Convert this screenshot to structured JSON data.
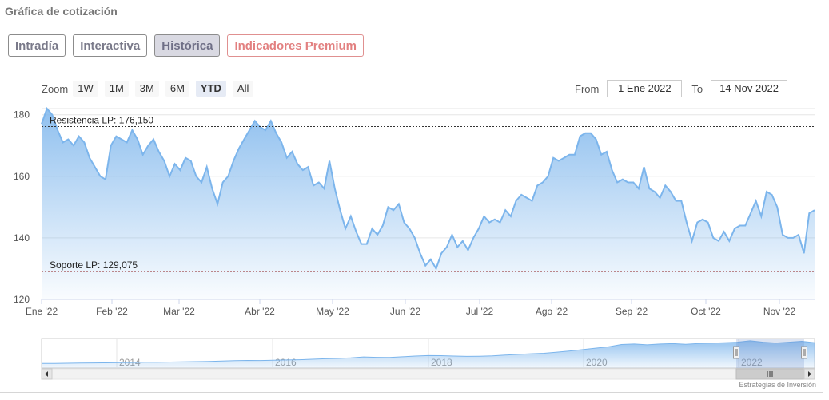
{
  "header": {
    "title": "Gráfica de cotización"
  },
  "tabs": [
    {
      "label": "Intradía",
      "active": false
    },
    {
      "label": "Interactiva",
      "active": false
    },
    {
      "label": "Histórica",
      "active": true
    },
    {
      "label": "Indicadores Premium",
      "active": false
    }
  ],
  "zoom": {
    "label": "Zoom",
    "options": [
      "1W",
      "1M",
      "3M",
      "6M",
      "YTD",
      "All"
    ],
    "selected": "YTD"
  },
  "range": {
    "from_label": "From",
    "from_value": "1 Ene 2022",
    "to_label": "To",
    "to_value": "14 Nov 2022"
  },
  "chart_data": {
    "type": "area",
    "x_tick_labels": [
      "Ene '22",
      "Feb '22",
      "Mar '22",
      "Abr '22",
      "May '22",
      "Jun '22",
      "Jul '22",
      "Ago '22",
      "Sep '22",
      "Oct '22",
      "Nov '22"
    ],
    "y_tick_labels": [
      "120",
      "140",
      "160",
      "180"
    ],
    "ylim": [
      120,
      182
    ],
    "resistance": {
      "label": "Resistencia LP: 176,150",
      "value": 176.15
    },
    "support": {
      "label": "Soporte LP: 129,075",
      "value": 129.075
    },
    "series": [
      {
        "values": [
          177,
          182,
          180,
          175,
          171,
          172,
          170,
          173,
          171,
          166,
          163,
          160,
          159,
          170,
          173,
          172,
          171,
          175,
          172,
          167,
          170,
          172,
          168,
          165,
          160,
          164,
          162,
          166,
          165,
          160,
          158,
          163,
          156,
          151,
          158,
          160,
          165,
          169,
          172,
          175,
          178,
          176,
          175,
          178,
          174,
          171,
          166,
          168,
          164,
          162,
          163,
          157,
          158,
          156,
          165,
          156,
          149,
          143,
          147,
          142,
          138,
          138,
          143,
          141,
          144,
          150,
          149,
          151,
          145,
          143,
          140,
          135,
          131,
          133,
          130,
          135,
          137,
          141,
          137,
          139,
          136,
          140,
          143,
          147,
          145,
          146,
          145,
          149,
          147,
          152,
          154,
          153,
          152,
          157,
          158,
          160,
          166,
          165,
          166,
          167,
          167,
          173,
          174,
          174,
          172,
          167,
          168,
          162,
          158,
          159,
          158,
          158,
          156,
          163,
          156,
          155,
          153,
          157,
          155,
          152,
          152,
          145,
          139,
          145,
          146,
          145,
          140,
          139,
          142,
          139,
          143,
          144,
          144,
          148,
          152,
          147,
          155,
          154,
          150,
          141,
          140,
          140,
          141,
          135,
          148,
          149
        ]
      }
    ]
  },
  "navigator": {
    "year_labels": [
      "2014",
      "2016",
      "2018",
      "2020",
      "2022"
    ],
    "values": [
      5,
      5,
      5.2,
      5.4,
      5.5,
      5.6,
      5.8,
      6,
      6.2,
      6.3,
      6.5,
      6.7,
      6.9,
      7.2,
      7.5,
      8,
      8.2,
      8.1,
      8.4,
      8.7,
      9,
      9.5,
      10,
      10.4,
      11,
      12,
      11.6,
      11.4,
      12.2,
      13,
      13.5,
      13.4,
      13,
      12.6,
      12.8,
      13.2,
      14,
      14.8,
      15.5,
      16,
      17.2,
      18.5,
      20,
      21.5,
      23,
      25.5,
      26,
      25.2,
      26,
      26.5,
      25.8,
      26.6,
      27,
      27.5,
      28,
      29.5,
      28,
      27.2,
      28,
      29,
      27.5
    ]
  },
  "credits": "Estrategias de Inversión",
  "colors": {
    "line": "#7cb5ec",
    "area_top": "#7cb5ec",
    "resistance_line": "#333333",
    "support_line": "#8b1a1a"
  }
}
